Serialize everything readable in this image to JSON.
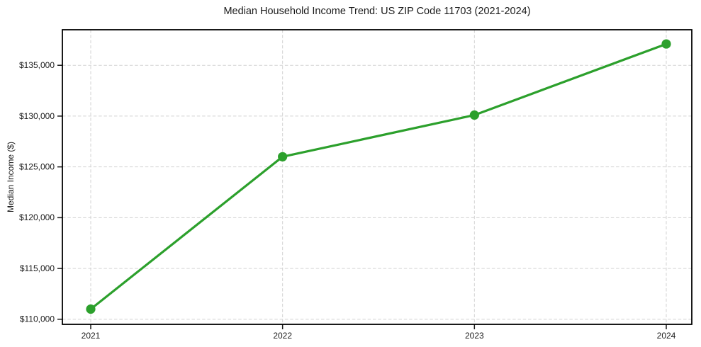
{
  "chart_data": {
    "type": "line",
    "title": "Median Household Income Trend: US ZIP Code 11703 (2021-2024)",
    "xlabel": "",
    "ylabel": "Median Income ($)",
    "x": [
      2021,
      2022,
      2023,
      2024
    ],
    "x_tick_labels": [
      "2021",
      "2022",
      "2023",
      "2024"
    ],
    "series": [
      {
        "name": "Median Household Income",
        "values": [
          111000,
          126000,
          130100,
          137100
        ],
        "color": "#2ca02c",
        "marker": "circle",
        "line_width": 3.2
      }
    ],
    "y_ticks": [
      110000,
      115000,
      120000,
      125000,
      130000,
      135000
    ],
    "y_tick_labels": [
      "$110,000",
      "$115,000",
      "$120,000",
      "$125,000",
      "$130,000",
      "$135,000"
    ],
    "ylim": [
      109500,
      138500
    ],
    "grid": true,
    "grid_style": "dashed",
    "grid_color": "#d3d3d3",
    "legend": "none",
    "background": "#ffffff"
  }
}
